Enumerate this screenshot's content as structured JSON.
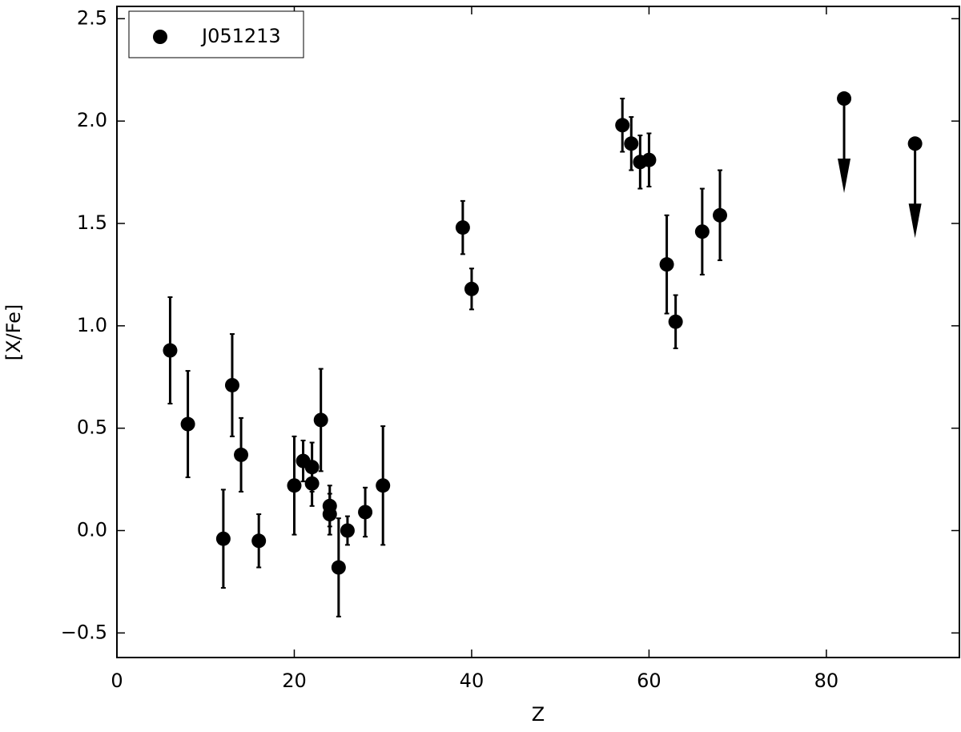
{
  "chart_data": {
    "type": "scatter",
    "xlabel": "Z",
    "ylabel": "[X/Fe]",
    "xlim": [
      0,
      95
    ],
    "ylim": [
      -0.62,
      2.56
    ],
    "xticks": [
      0,
      20,
      40,
      60,
      80
    ],
    "yticks": [
      {
        "value": -0.5,
        "label": "−0.5"
      },
      {
        "value": 0,
        "label": "0.0"
      },
      0.5,
      {
        "value": 1,
        "label": "1.0"
      },
      1.5,
      {
        "value": 2,
        "label": "2.0"
      },
      2.5
    ],
    "legend": "upper left",
    "series": [
      {
        "name": "J051213",
        "color": "#000000",
        "x": [
          6,
          8,
          12,
          13,
          14,
          16,
          20,
          21,
          22,
          22,
          23,
          24,
          24,
          25,
          26,
          28,
          30,
          39,
          40,
          57,
          58,
          59,
          60,
          62,
          63,
          66,
          68,
          82,
          90
        ],
        "y": [
          0.88,
          0.52,
          -0.04,
          0.71,
          0.37,
          -0.05,
          0.22,
          0.34,
          0.31,
          0.23,
          0.54,
          0.12,
          0.08,
          -0.18,
          0.0,
          0.09,
          0.22,
          1.48,
          1.18,
          1.98,
          1.89,
          1.8,
          1.81,
          1.3,
          1.02,
          1.46,
          1.54,
          2.11,
          1.89
        ],
        "errors": [
          0.26,
          0.26,
          0.24,
          0.25,
          0.18,
          0.13,
          0.24,
          0.1,
          0.12,
          0.11,
          0.25,
          0.1,
          0.1,
          0.24,
          0.07,
          0.12,
          0.29,
          0.13,
          0.1,
          0.13,
          0.13,
          0.13,
          0.13,
          0.24,
          0.13,
          0.21,
          0.22,
          null,
          null
        ],
        "upper_limit": [
          false,
          false,
          false,
          false,
          false,
          false,
          false,
          false,
          false,
          false,
          false,
          false,
          false,
          false,
          false,
          false,
          false,
          false,
          false,
          false,
          false,
          false,
          false,
          false,
          false,
          false,
          false,
          true,
          true
        ]
      }
    ]
  }
}
